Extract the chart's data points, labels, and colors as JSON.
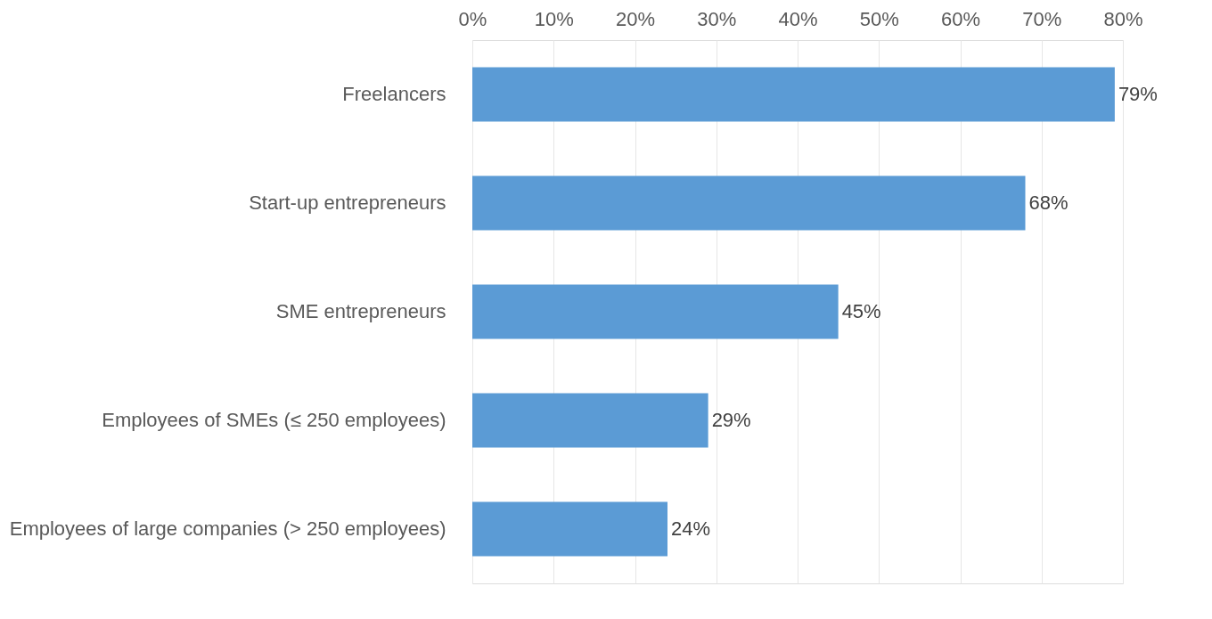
{
  "chart_data": {
    "type": "bar",
    "orientation": "horizontal",
    "categories": [
      "Freelancers",
      "Start-up entrepreneurs",
      "SME entrepreneurs",
      "Employees of SMEs (≤ 250 employees)",
      "Employees of large companies (> 250 employees)"
    ],
    "values": [
      79,
      68,
      45,
      29,
      24
    ],
    "value_labels": [
      "79%",
      "68%",
      "45%",
      "29%",
      "24%"
    ],
    "color": "#5b9bd5",
    "xlim": [
      0,
      80
    ],
    "xticks": [
      {
        "value": 0,
        "label": "0%"
      },
      {
        "value": 10,
        "label": "10%"
      },
      {
        "value": 20,
        "label": "20%"
      },
      {
        "value": 30,
        "label": "30%"
      },
      {
        "value": 40,
        "label": "40%"
      },
      {
        "value": 50,
        "label": "50%"
      },
      {
        "value": 60,
        "label": "60%"
      },
      {
        "value": 70,
        "label": "70%"
      },
      {
        "value": 80,
        "label": "80%"
      }
    ],
    "grid": "x"
  }
}
